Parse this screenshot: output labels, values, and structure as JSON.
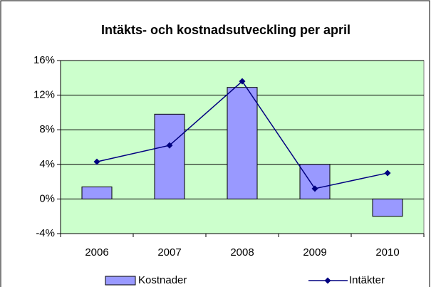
{
  "chart_data": {
    "type": "bar-line",
    "title": "Intäkts- och kostnadsutveckling per april",
    "categories": [
      "2006",
      "2007",
      "2008",
      "2009",
      "2010"
    ],
    "series": [
      {
        "name": "Kostnader",
        "type": "bar",
        "color": "#9999ff",
        "values": [
          1.4,
          9.8,
          12.9,
          4.0,
          -2.0
        ]
      },
      {
        "name": "Intäkter",
        "type": "line",
        "color": "#000080",
        "values": [
          4.3,
          6.2,
          13.6,
          1.2,
          3.0
        ]
      }
    ],
    "ylim": [
      -4,
      16
    ],
    "yticks": [
      {
        "value": -4,
        "label": "-4%"
      },
      {
        "value": 0,
        "label": "0%"
      },
      {
        "value": 4,
        "label": "4%"
      },
      {
        "value": 8,
        "label": "8%"
      },
      {
        "value": 12,
        "label": "12%"
      },
      {
        "value": 16,
        "label": "16%"
      }
    ],
    "grid": true,
    "legend": "bottom",
    "plot_background": "#ccffcc"
  }
}
